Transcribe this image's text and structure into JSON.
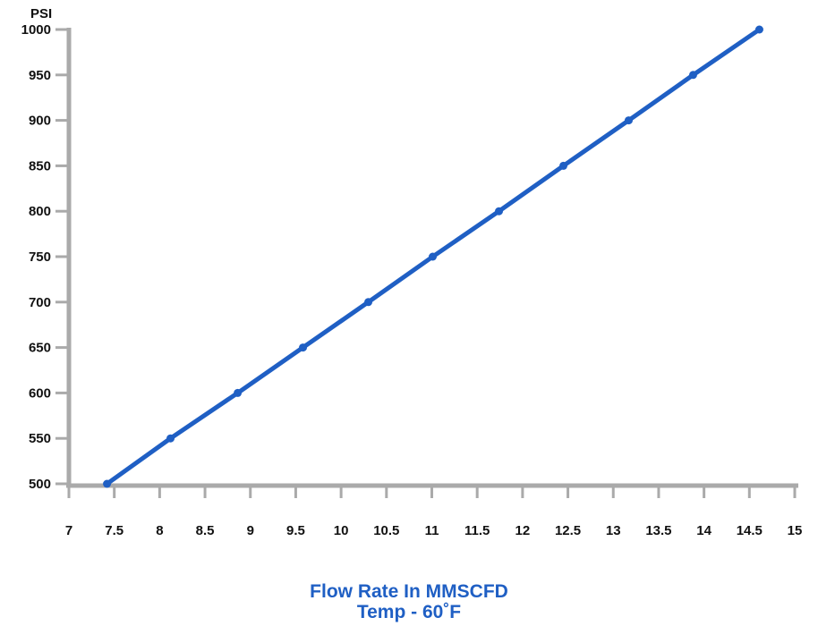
{
  "chart_data": {
    "type": "line",
    "ylabel": "PSI",
    "xlim": [
      7,
      15
    ],
    "ylim": [
      500,
      1000
    ],
    "x_ticks": [
      "7",
      "7.5",
      "8",
      "8.5",
      "9",
      "9.5",
      "10",
      "10.5",
      "11",
      "11.5",
      "12",
      "12.5",
      "13",
      "13.5",
      "14",
      "14.5",
      "15"
    ],
    "y_ticks": [
      "500",
      "550",
      "600",
      "650",
      "700",
      "750",
      "800",
      "850",
      "900",
      "950",
      "1000"
    ],
    "grid": false,
    "series": [
      {
        "x": [
          7.42,
          8.12,
          8.86,
          9.58,
          10.3,
          11.01,
          11.74,
          12.45,
          13.17,
          13.88,
          14.61
        ],
        "y": [
          500,
          550,
          600,
          650,
          700,
          750,
          800,
          850,
          900,
          950,
          1000
        ]
      }
    ],
    "colors": {
      "line": "#1f5fc4",
      "axis": "#aaaaaa",
      "caption": "#1f5fc4"
    },
    "caption": {
      "line1": "Flow Rate In MMSCFD",
      "line2": "Temp - 60˚F"
    }
  }
}
